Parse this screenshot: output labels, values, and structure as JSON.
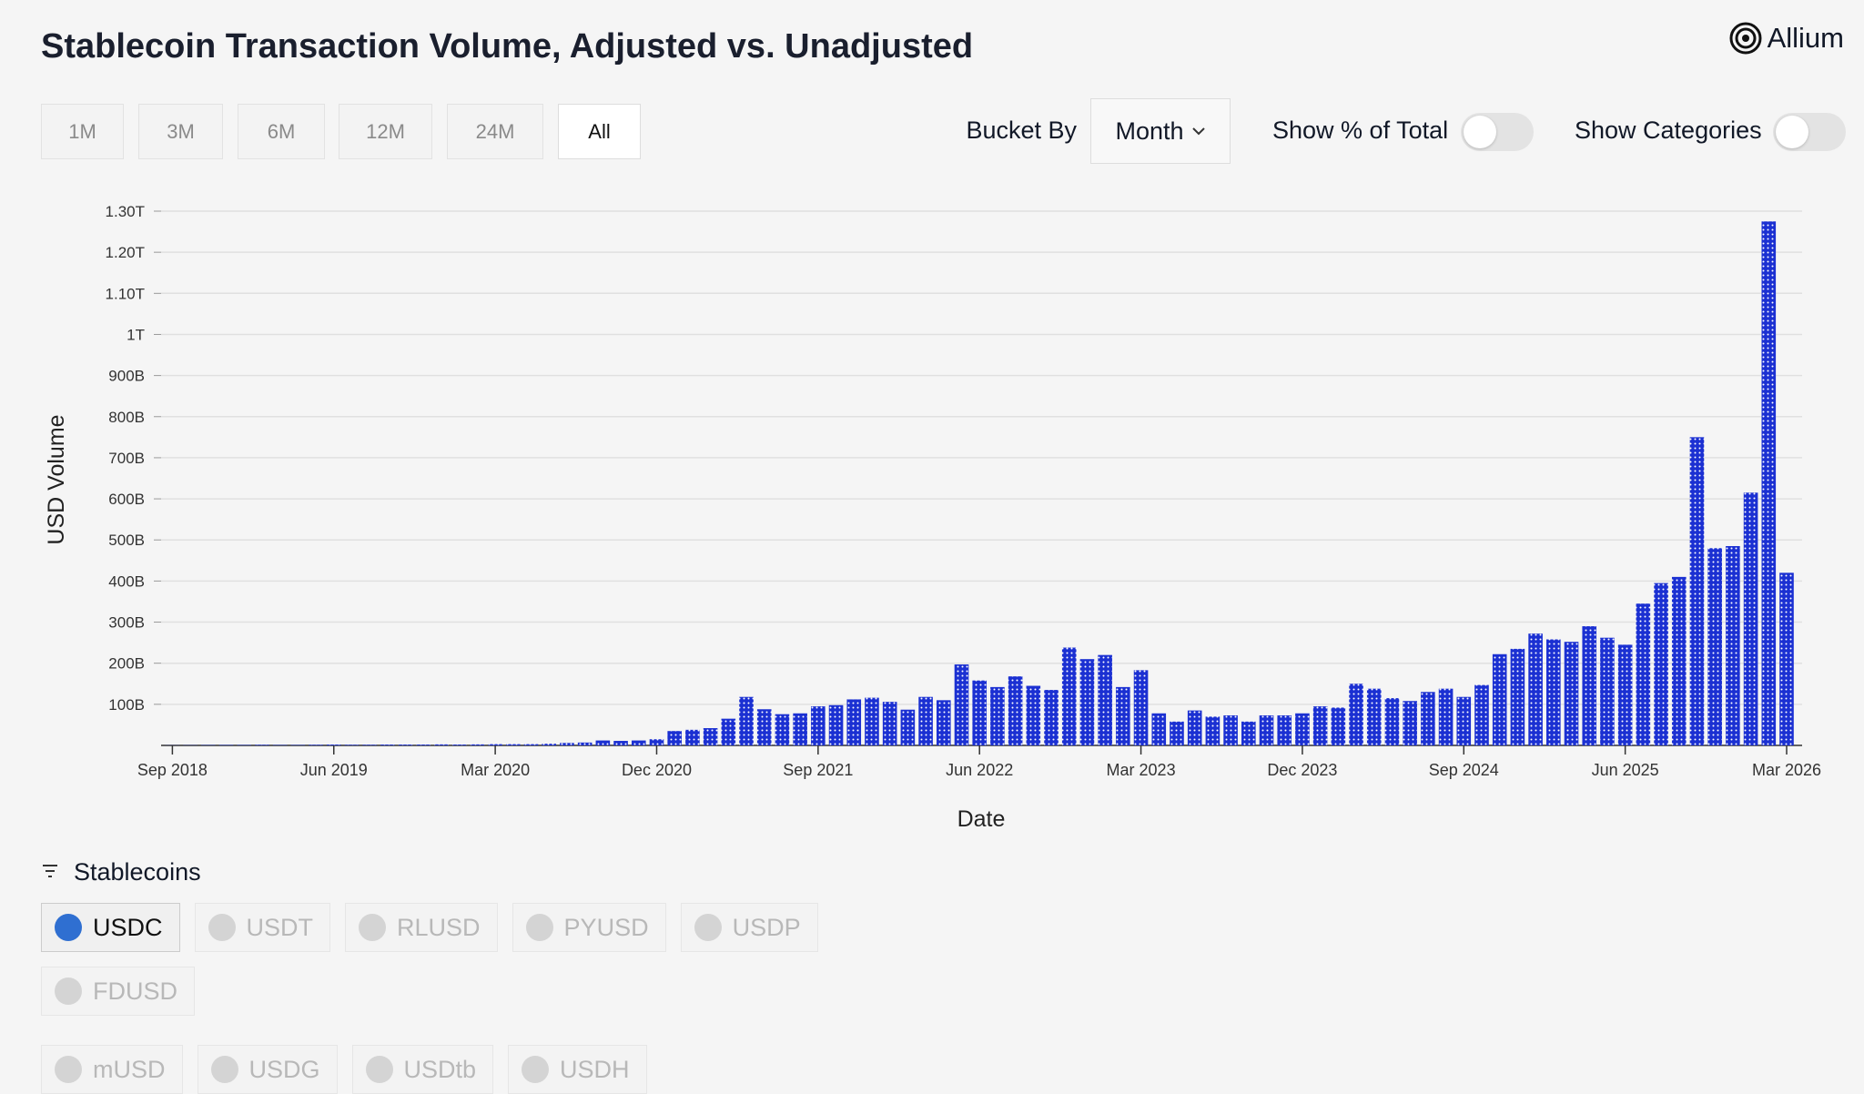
{
  "header": {
    "title": "Stablecoin Transaction Volume, Adjusted vs. Unadjusted",
    "logo": "Allium"
  },
  "controls": {
    "ranges": [
      {
        "label": "1M"
      },
      {
        "label": "3M"
      },
      {
        "label": "6M"
      },
      {
        "label": "12M"
      },
      {
        "label": "24M"
      },
      {
        "label": "All",
        "selected": true
      }
    ],
    "bucket_label": "Bucket By",
    "bucket_value": "Month",
    "toggles": [
      {
        "label": "Show % of Total",
        "on": false
      },
      {
        "label": "Show Categories",
        "on": false
      }
    ]
  },
  "chart_data": {
    "type": "bar",
    "x_label": "Date",
    "y_label": "USD Volume",
    "color": "#1b30d2",
    "grid": true,
    "categories": [
      "Sep 2018",
      null,
      null,
      null,
      null,
      null,
      null,
      null,
      null,
      "Jun 2019",
      null,
      null,
      null,
      null,
      null,
      null,
      null,
      null,
      "Mar 2020",
      null,
      null,
      null,
      null,
      null,
      null,
      null,
      null,
      "Dec 2020",
      null,
      null,
      null,
      null,
      null,
      null,
      null,
      null,
      "Sep 2021",
      null,
      null,
      null,
      null,
      null,
      null,
      null,
      null,
      "Jun 2022",
      null,
      null,
      null,
      null,
      null,
      null,
      null,
      null,
      "Mar 2023",
      null,
      null,
      null,
      null,
      null,
      null,
      null,
      null,
      "Dec 2023",
      null,
      null,
      null,
      null,
      null,
      null,
      null,
      null,
      "Sep 2024",
      null,
      null,
      null,
      null,
      null,
      null,
      null,
      null,
      "Jun 2025",
      null,
      null,
      null,
      null,
      null,
      null,
      null,
      null,
      "Mar 2026"
    ],
    "values": [
      300000000.0,
      500000000.0,
      800000000.0,
      1000000000.0,
      1000000000.0,
      1500000000.0,
      1000000000.0,
      1000000000.0,
      1500000000.0,
      2000000000.0,
      1500000000.0,
      1500000000.0,
      2000000000.0,
      2000000000.0,
      2000000000.0,
      2500000000.0,
      2000000000.0,
      2500000000.0,
      3000000000.0,
      3000000000.0,
      3000000000.0,
      4000000000.0,
      6000000000.0,
      7000000000.0,
      12000000000.0,
      11000000000.0,
      12000000000.0,
      15000000000.0,
      35000000000.0,
      38000000000.0,
      42000000000.0,
      65000000000.0,
      118000000000.0,
      88000000000.0,
      76000000000.0,
      78000000000.0,
      95000000000.0,
      98000000000.0,
      112000000000.0,
      116000000000.0,
      106000000000.0,
      87000000000.0,
      118000000000.0,
      110000000000.0,
      197000000000.0,
      158000000000.0,
      142000000000.0,
      168000000000.0,
      145000000000.0,
      135000000000.0,
      238000000000.0,
      210000000000.0,
      220000000000.0,
      142000000000.0,
      183000000000.0,
      78000000000.0,
      58000000000.0,
      85000000000.0,
      70000000000.0,
      73000000000.0,
      58000000000.0,
      73000000000.0,
      73000000000.0,
      78000000000.0,
      95000000000.0,
      92000000000.0,
      150000000000.0,
      138000000000.0,
      115000000000.0,
      108000000000.0,
      130000000000.0,
      138000000000.0,
      118000000000.0,
      147000000000.0,
      222000000000.0,
      235000000000.0,
      272000000000.0,
      258000000000.0,
      252000000000.0,
      290000000000.0,
      262000000000.0,
      245000000000.0,
      345000000000.0,
      395000000000.0,
      410000000000.0,
      750000000000.0,
      480000000000.0,
      485000000000.0,
      615000000000.0,
      1275000000000.0,
      420000000000.0
    ],
    "ylim": [
      0,
      1300000000000.0
    ],
    "yticks": [
      {
        "value": 100000000000.0,
        "label": "100B"
      },
      {
        "value": 200000000000.0,
        "label": "200B"
      },
      {
        "value": 300000000000.0,
        "label": "300B"
      },
      {
        "value": 400000000000.0,
        "label": "400B"
      },
      {
        "value": 500000000000.0,
        "label": "500B"
      },
      {
        "value": 600000000000.0,
        "label": "600B"
      },
      {
        "value": 700000000000.0,
        "label": "700B"
      },
      {
        "value": 800000000000.0,
        "label": "800B"
      },
      {
        "value": 900000000000.0,
        "label": "900B"
      },
      {
        "value": 1000000000000.0,
        "label": "1T"
      },
      {
        "value": 1100000000000.0,
        "label": "1.10T"
      },
      {
        "value": 1200000000000.0,
        "label": "1.20T"
      },
      {
        "value": 1300000000000.0,
        "label": "1.30T"
      }
    ]
  },
  "filters": {
    "title": "Stablecoins",
    "coins": [
      {
        "label": "USDC",
        "selected": true
      },
      {
        "label": "USDT"
      },
      {
        "label": "RLUSD"
      },
      {
        "label": "PYUSD"
      },
      {
        "label": "USDP"
      },
      {
        "label": "FDUSD"
      },
      {
        "label": "mUSD"
      },
      {
        "label": "USDG"
      },
      {
        "label": "USDtb"
      },
      {
        "label": "USDH"
      }
    ]
  }
}
